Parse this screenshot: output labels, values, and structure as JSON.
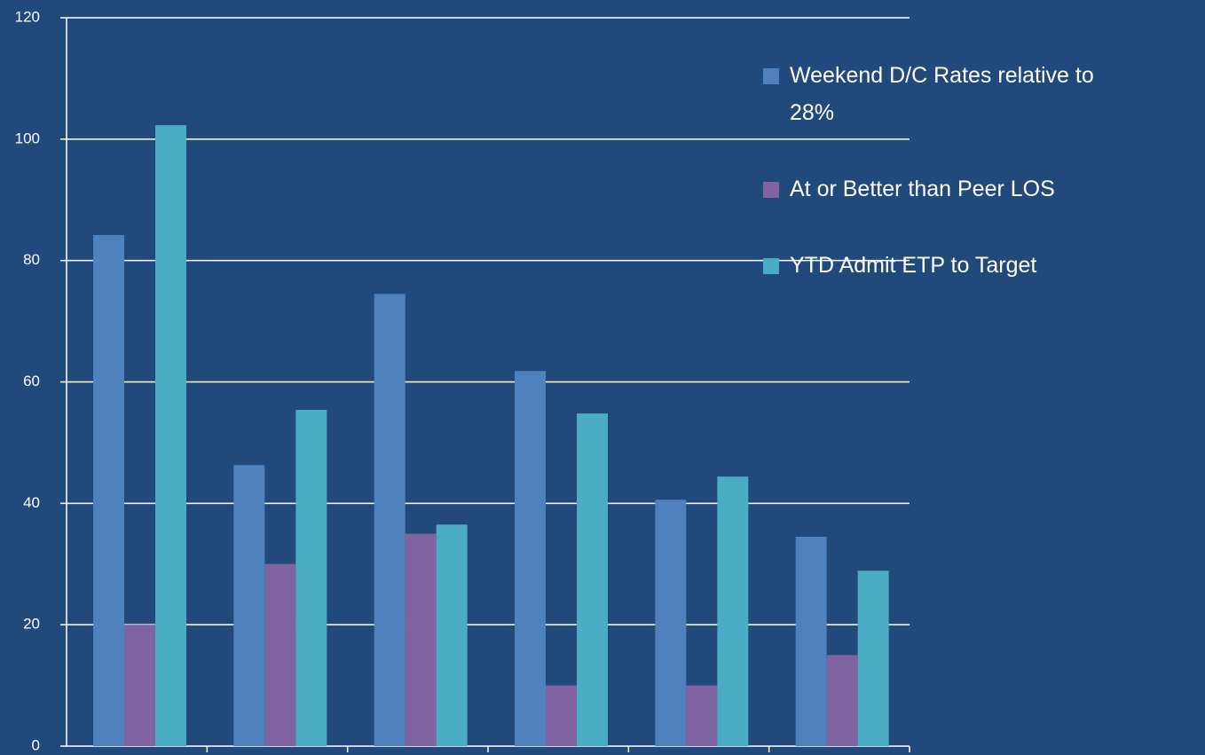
{
  "chart_data": {
    "type": "bar",
    "categories": [
      null,
      null,
      null,
      null,
      null,
      null
    ],
    "series": [
      {
        "name": "Weekend D/C Rates relative to 28%",
        "color": "#4f81bd",
        "values": [
          84.2,
          46.3,
          74.5,
          61.8,
          40.6,
          34.5
        ]
      },
      {
        "name": "At or Better than Peer LOS",
        "color": "#8064a2",
        "values": [
          20,
          30,
          35,
          10,
          10,
          15
        ]
      },
      {
        "name": "YTD Admit ETP to Target",
        "color": "#4bacc6",
        "values": [
          102.3,
          55.4,
          36.5,
          54.8,
          44.4,
          28.9
        ]
      }
    ],
    "ylim": [
      0,
      120
    ],
    "yticks": [
      0,
      20,
      40,
      60,
      80,
      100,
      120
    ],
    "grid": true,
    "legend": "right"
  }
}
